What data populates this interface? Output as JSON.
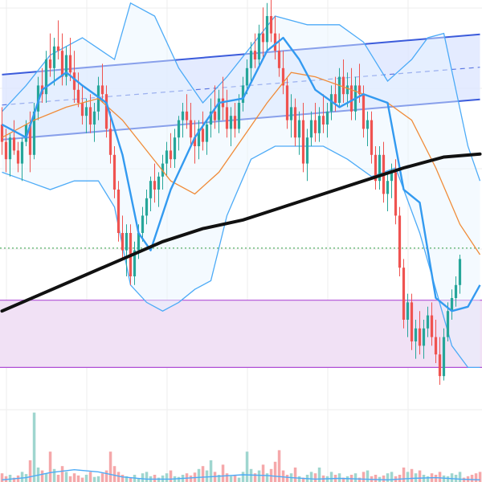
{
  "chart_data": {
    "type": "candlestick",
    "title": "",
    "xlabel": "",
    "ylabel": "",
    "grid": true,
    "legend": "none",
    "x_count": 120,
    "ylim": [
      0,
      100
    ],
    "volume_ylim": [
      0,
      100
    ],
    "colors": {
      "up": "#26a69a",
      "down": "#ef5350",
      "volume_up": "#9fd6cf",
      "volume_down": "#f5a8aa",
      "channel_line": "#3b5bdb",
      "channel_fill": "#dbe4ff",
      "bollinger_line": "#4dabf7",
      "bollinger_fill": "#e7f3ff",
      "ema_fast": "#339af0",
      "ema_slow": "#f08c3a",
      "sma_long": "#111111",
      "zone_border": "#b04fd6",
      "zone_fill": "#f1e1f5",
      "price_line": "#2f9e44",
      "grid": "#eeeeee"
    },
    "regression_channel": {
      "upper": [
        [
          0,
          86.5
        ],
        [
          119,
          95.8
        ]
      ],
      "middle": [
        [
          0,
          79.5
        ],
        [
          119,
          88.2
        ]
      ],
      "lower": [
        [
          0,
          71.5
        ],
        [
          119,
          80.8
        ]
      ]
    },
    "support_zone": {
      "top": 34.5,
      "bottom": 19.0
    },
    "price_line": 46.5,
    "sma_long": [
      [
        0,
        32
      ],
      [
        10,
        36
      ],
      [
        20,
        40
      ],
      [
        30,
        44
      ],
      [
        40,
        48
      ],
      [
        50,
        51
      ],
      [
        60,
        53
      ],
      [
        70,
        56
      ],
      [
        80,
        59
      ],
      [
        90,
        62
      ],
      [
        100,
        65
      ],
      [
        110,
        67.5
      ],
      [
        119,
        68.2
      ]
    ],
    "ema_fast": [
      [
        0,
        75
      ],
      [
        6,
        72
      ],
      [
        10,
        83
      ],
      [
        16,
        87
      ],
      [
        20,
        84
      ],
      [
        26,
        80
      ],
      [
        30,
        68
      ],
      [
        34,
        50
      ],
      [
        37,
        46
      ],
      [
        42,
        60
      ],
      [
        48,
        72
      ],
      [
        54,
        80
      ],
      [
        60,
        81
      ],
      [
        66,
        92
      ],
      [
        70,
        95
      ],
      [
        74,
        90
      ],
      [
        78,
        83
      ],
      [
        84,
        79
      ],
      [
        90,
        82
      ],
      [
        96,
        80
      ],
      [
        100,
        60
      ],
      [
        104,
        57
      ],
      [
        108,
        35
      ],
      [
        112,
        32
      ],
      [
        116,
        33
      ],
      [
        119,
        38
      ]
    ],
    "ema_slow": [
      [
        0,
        72
      ],
      [
        8,
        76
      ],
      [
        16,
        79
      ],
      [
        24,
        81
      ],
      [
        30,
        76
      ],
      [
        36,
        69
      ],
      [
        42,
        62
      ],
      [
        48,
        59
      ],
      [
        54,
        64
      ],
      [
        60,
        72
      ],
      [
        66,
        80
      ],
      [
        72,
        87
      ],
      [
        78,
        86
      ],
      [
        84,
        84
      ],
      [
        90,
        82
      ],
      [
        96,
        80
      ],
      [
        102,
        76
      ],
      [
        108,
        65
      ],
      [
        114,
        52
      ],
      [
        119,
        45
      ]
    ],
    "bollinger_upper": [
      [
        0,
        78
      ],
      [
        6,
        84
      ],
      [
        12,
        91
      ],
      [
        20,
        95
      ],
      [
        28,
        90
      ],
      [
        32,
        103
      ],
      [
        38,
        100
      ],
      [
        44,
        88
      ],
      [
        50,
        80
      ],
      [
        56,
        86
      ],
      [
        62,
        93
      ],
      [
        68,
        100
      ],
      [
        76,
        98
      ],
      [
        84,
        98
      ],
      [
        90,
        94
      ],
      [
        96,
        85
      ],
      [
        102,
        90
      ],
      [
        106,
        95
      ],
      [
        110,
        96
      ],
      [
        116,
        70
      ],
      [
        119,
        62
      ]
    ],
    "bollinger_lower": [
      [
        0,
        64
      ],
      [
        6,
        62
      ],
      [
        12,
        60
      ],
      [
        18,
        62
      ],
      [
        24,
        62
      ],
      [
        28,
        56
      ],
      [
        32,
        38
      ],
      [
        36,
        34
      ],
      [
        40,
        32
      ],
      [
        44,
        34
      ],
      [
        48,
        37
      ],
      [
        52,
        39
      ],
      [
        56,
        54
      ],
      [
        62,
        67
      ],
      [
        68,
        70
      ],
      [
        74,
        70
      ],
      [
        80,
        70
      ],
      [
        86,
        67
      ],
      [
        92,
        63
      ],
      [
        98,
        65
      ],
      [
        104,
        50
      ],
      [
        108,
        37
      ],
      [
        112,
        24
      ],
      [
        116,
        19
      ],
      [
        119,
        19
      ]
    ],
    "candles": [
      {
        "o": 75,
        "h": 79,
        "l": 68,
        "c": 71
      },
      {
        "o": 71,
        "h": 74,
        "l": 64,
        "c": 67
      },
      {
        "o": 67,
        "h": 73,
        "l": 63,
        "c": 72
      },
      {
        "o": 72,
        "h": 76,
        "l": 68,
        "c": 69
      },
      {
        "o": 69,
        "h": 71,
        "l": 64,
        "c": 66
      },
      {
        "o": 66,
        "h": 72,
        "l": 62,
        "c": 71
      },
      {
        "o": 71,
        "h": 76,
        "l": 70,
        "c": 75
      },
      {
        "o": 75,
        "h": 78,
        "l": 64,
        "c": 68
      },
      {
        "o": 68,
        "h": 80,
        "l": 67,
        "c": 78
      },
      {
        "o": 78,
        "h": 86,
        "l": 76,
        "c": 84
      },
      {
        "o": 84,
        "h": 88,
        "l": 80,
        "c": 82
      },
      {
        "o": 82,
        "h": 92,
        "l": 80,
        "c": 90
      },
      {
        "o": 90,
        "h": 96,
        "l": 86,
        "c": 88
      },
      {
        "o": 88,
        "h": 95,
        "l": 84,
        "c": 93
      },
      {
        "o": 93,
        "h": 99,
        "l": 90,
        "c": 92
      },
      {
        "o": 92,
        "h": 96,
        "l": 84,
        "c": 86
      },
      {
        "o": 86,
        "h": 93,
        "l": 84,
        "c": 91
      },
      {
        "o": 91,
        "h": 95,
        "l": 85,
        "c": 87
      },
      {
        "o": 87,
        "h": 92,
        "l": 80,
        "c": 83
      },
      {
        "o": 83,
        "h": 87,
        "l": 79,
        "c": 80
      },
      {
        "o": 80,
        "h": 84,
        "l": 75,
        "c": 77
      },
      {
        "o": 77,
        "h": 81,
        "l": 73,
        "c": 79
      },
      {
        "o": 79,
        "h": 82,
        "l": 73,
        "c": 75
      },
      {
        "o": 75,
        "h": 80,
        "l": 71,
        "c": 78
      },
      {
        "o": 78,
        "h": 86,
        "l": 76,
        "c": 84
      },
      {
        "o": 84,
        "h": 89,
        "l": 80,
        "c": 82
      },
      {
        "o": 82,
        "h": 84,
        "l": 72,
        "c": 74
      },
      {
        "o": 74,
        "h": 78,
        "l": 66,
        "c": 68
      },
      {
        "o": 68,
        "h": 70,
        "l": 58,
        "c": 60
      },
      {
        "o": 60,
        "h": 62,
        "l": 48,
        "c": 50
      },
      {
        "o": 50,
        "h": 54,
        "l": 44,
        "c": 46
      },
      {
        "o": 46,
        "h": 52,
        "l": 40,
        "c": 50
      },
      {
        "o": 50,
        "h": 52,
        "l": 38,
        "c": 40
      },
      {
        "o": 40,
        "h": 48,
        "l": 38,
        "c": 46
      },
      {
        "o": 46,
        "h": 52,
        "l": 44,
        "c": 50
      },
      {
        "o": 50,
        "h": 56,
        "l": 48,
        "c": 54
      },
      {
        "o": 54,
        "h": 60,
        "l": 52,
        "c": 58
      },
      {
        "o": 58,
        "h": 63,
        "l": 55,
        "c": 62
      },
      {
        "o": 62,
        "h": 66,
        "l": 57,
        "c": 60
      },
      {
        "o": 60,
        "h": 64,
        "l": 56,
        "c": 63
      },
      {
        "o": 63,
        "h": 68,
        "l": 60,
        "c": 66
      },
      {
        "o": 66,
        "h": 71,
        "l": 63,
        "c": 69
      },
      {
        "o": 69,
        "h": 73,
        "l": 65,
        "c": 67
      },
      {
        "o": 67,
        "h": 74,
        "l": 65,
        "c": 72
      },
      {
        "o": 72,
        "h": 77,
        "l": 69,
        "c": 76
      },
      {
        "o": 76,
        "h": 80,
        "l": 72,
        "c": 78
      },
      {
        "o": 78,
        "h": 82,
        "l": 74,
        "c": 76
      },
      {
        "o": 76,
        "h": 80,
        "l": 70,
        "c": 72
      },
      {
        "o": 72,
        "h": 76,
        "l": 66,
        "c": 70
      },
      {
        "o": 70,
        "h": 76,
        "l": 67,
        "c": 74
      },
      {
        "o": 74,
        "h": 78,
        "l": 69,
        "c": 71
      },
      {
        "o": 71,
        "h": 76,
        "l": 68,
        "c": 75
      },
      {
        "o": 75,
        "h": 81,
        "l": 72,
        "c": 78
      },
      {
        "o": 78,
        "h": 84,
        "l": 74,
        "c": 76
      },
      {
        "o": 76,
        "h": 83,
        "l": 73,
        "c": 81
      },
      {
        "o": 81,
        "h": 86,
        "l": 76,
        "c": 79
      },
      {
        "o": 79,
        "h": 83,
        "l": 72,
        "c": 74
      },
      {
        "o": 74,
        "h": 79,
        "l": 70,
        "c": 77
      },
      {
        "o": 77,
        "h": 80,
        "l": 72,
        "c": 74
      },
      {
        "o": 74,
        "h": 82,
        "l": 73,
        "c": 80
      },
      {
        "o": 80,
        "h": 86,
        "l": 78,
        "c": 84
      },
      {
        "o": 84,
        "h": 90,
        "l": 82,
        "c": 88
      },
      {
        "o": 88,
        "h": 94,
        "l": 85,
        "c": 92
      },
      {
        "o": 92,
        "h": 96,
        "l": 88,
        "c": 90
      },
      {
        "o": 90,
        "h": 98,
        "l": 88,
        "c": 96
      },
      {
        "o": 96,
        "h": 102,
        "l": 90,
        "c": 94
      },
      {
        "o": 94,
        "h": 103,
        "l": 92,
        "c": 100
      },
      {
        "o": 100,
        "h": 104,
        "l": 94,
        "c": 96
      },
      {
        "o": 96,
        "h": 100,
        "l": 90,
        "c": 92
      },
      {
        "o": 92,
        "h": 96,
        "l": 86,
        "c": 88
      },
      {
        "o": 88,
        "h": 92,
        "l": 82,
        "c": 84
      },
      {
        "o": 84,
        "h": 86,
        "l": 74,
        "c": 76
      },
      {
        "o": 76,
        "h": 82,
        "l": 72,
        "c": 79
      },
      {
        "o": 79,
        "h": 81,
        "l": 70,
        "c": 72
      },
      {
        "o": 72,
        "h": 78,
        "l": 68,
        "c": 76
      },
      {
        "o": 76,
        "h": 80,
        "l": 64,
        "c": 66
      },
      {
        "o": 66,
        "h": 74,
        "l": 62,
        "c": 72
      },
      {
        "o": 72,
        "h": 78,
        "l": 70,
        "c": 76
      },
      {
        "o": 76,
        "h": 80,
        "l": 71,
        "c": 73
      },
      {
        "o": 73,
        "h": 79,
        "l": 71,
        "c": 77
      },
      {
        "o": 77,
        "h": 82,
        "l": 73,
        "c": 75
      },
      {
        "o": 75,
        "h": 80,
        "l": 72,
        "c": 78
      },
      {
        "o": 78,
        "h": 84,
        "l": 76,
        "c": 82
      },
      {
        "o": 82,
        "h": 86,
        "l": 78,
        "c": 80
      },
      {
        "o": 80,
        "h": 88,
        "l": 79,
        "c": 86
      },
      {
        "o": 86,
        "h": 90,
        "l": 80,
        "c": 82
      },
      {
        "o": 82,
        "h": 87,
        "l": 79,
        "c": 84
      },
      {
        "o": 84,
        "h": 88,
        "l": 76,
        "c": 78
      },
      {
        "o": 78,
        "h": 86,
        "l": 76,
        "c": 84
      },
      {
        "o": 84,
        "h": 89,
        "l": 80,
        "c": 82
      },
      {
        "o": 82,
        "h": 84,
        "l": 72,
        "c": 74
      },
      {
        "o": 74,
        "h": 78,
        "l": 70,
        "c": 76
      },
      {
        "o": 76,
        "h": 78,
        "l": 66,
        "c": 68
      },
      {
        "o": 68,
        "h": 70,
        "l": 60,
        "c": 62
      },
      {
        "o": 62,
        "h": 70,
        "l": 60,
        "c": 68
      },
      {
        "o": 68,
        "h": 71,
        "l": 57,
        "c": 59
      },
      {
        "o": 59,
        "h": 64,
        "l": 55,
        "c": 62
      },
      {
        "o": 62,
        "h": 66,
        "l": 58,
        "c": 64
      },
      {
        "o": 64,
        "h": 67,
        "l": 52,
        "c": 54
      },
      {
        "o": 54,
        "h": 56,
        "l": 40,
        "c": 42
      },
      {
        "o": 42,
        "h": 44,
        "l": 28,
        "c": 30
      },
      {
        "o": 30,
        "h": 36,
        "l": 26,
        "c": 34
      },
      {
        "o": 34,
        "h": 36,
        "l": 23,
        "c": 25
      },
      {
        "o": 25,
        "h": 30,
        "l": 21,
        "c": 28
      },
      {
        "o": 28,
        "h": 32,
        "l": 22,
        "c": 24
      },
      {
        "o": 24,
        "h": 30,
        "l": 21,
        "c": 28
      },
      {
        "o": 28,
        "h": 33,
        "l": 26,
        "c": 31
      },
      {
        "o": 31,
        "h": 34,
        "l": 24,
        "c": 26
      },
      {
        "o": 26,
        "h": 30,
        "l": 20,
        "c": 22
      },
      {
        "o": 22,
        "h": 26,
        "l": 15,
        "c": 17
      },
      {
        "o": 17,
        "h": 28,
        "l": 16,
        "c": 26
      },
      {
        "o": 26,
        "h": 34,
        "l": 25,
        "c": 32
      },
      {
        "o": 32,
        "h": 37,
        "l": 30,
        "c": 35
      },
      {
        "o": 35,
        "h": 40,
        "l": 33,
        "c": 38
      },
      {
        "o": 38,
        "h": 45,
        "l": 36,
        "c": 44
      }
    ],
    "volume": [
      12,
      8,
      10,
      6,
      9,
      14,
      11,
      30,
      96,
      20,
      16,
      12,
      42,
      18,
      10,
      22,
      14,
      8,
      12,
      9,
      6,
      10,
      14,
      7,
      8,
      12,
      16,
      42,
      22,
      14,
      10,
      8,
      6,
      10,
      5,
      12,
      14,
      8,
      10,
      6,
      9,
      12,
      16,
      8,
      7,
      10,
      12,
      9,
      13,
      18,
      22,
      16,
      30,
      14,
      10,
      24,
      12,
      8,
      10,
      6,
      14,
      42,
      18,
      12,
      16,
      24,
      12,
      18,
      28,
      44,
      16,
      10,
      12,
      20,
      8,
      6,
      10,
      14,
      12,
      20,
      9,
      8,
      14,
      10,
      12,
      6,
      8,
      10,
      12,
      6,
      14,
      16,
      8,
      10,
      7,
      9,
      12,
      14,
      8,
      10,
      20,
      14,
      18,
      12,
      16,
      10,
      8,
      12,
      10,
      14,
      9,
      8,
      12,
      10,
      14,
      6,
      8,
      10,
      12,
      14
    ],
    "volume_ma": [
      [
        0,
        3
      ],
      [
        6,
        6
      ],
      [
        12,
        13
      ],
      [
        18,
        17
      ],
      [
        24,
        14
      ],
      [
        30,
        7
      ],
      [
        36,
        4
      ],
      [
        42,
        4
      ],
      [
        48,
        6
      ],
      [
        54,
        8
      ],
      [
        60,
        10
      ],
      [
        66,
        9
      ],
      [
        72,
        6
      ],
      [
        78,
        4
      ],
      [
        84,
        5
      ],
      [
        90,
        4
      ],
      [
        96,
        3
      ],
      [
        102,
        5
      ],
      [
        108,
        6
      ],
      [
        114,
        4
      ],
      [
        119,
        3
      ]
    ]
  }
}
